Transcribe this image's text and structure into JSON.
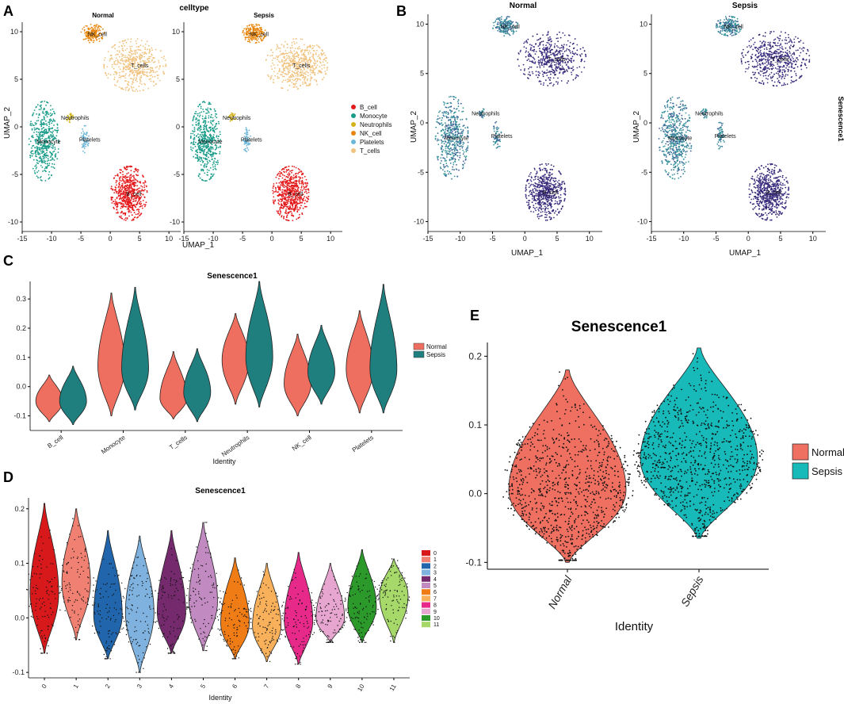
{
  "panel_letters": [
    "A",
    "B",
    "C",
    "D",
    "E"
  ],
  "chart_data": [
    {
      "panel": "A",
      "type": "scatter",
      "title": "celltype",
      "facets": [
        "Normal",
        "Sepsis"
      ],
      "xlabel": "UMAP_1",
      "ylabel": "UMAP_2",
      "xlim": [
        -15,
        12
      ],
      "ylim": [
        -11,
        11
      ],
      "x_ticks": [
        -15,
        -10,
        -5,
        0,
        5,
        10
      ],
      "y_ticks": [
        10,
        5,
        0,
        -5,
        -10
      ],
      "legend": [
        {
          "name": "B_cell",
          "color": "#e41a1c"
        },
        {
          "name": "Monocyte",
          "color": "#1a9c8a"
        },
        {
          "name": "Neutrophils",
          "color": "#d4b31a"
        },
        {
          "name": "NK_cell",
          "color": "#e8870e"
        },
        {
          "name": "Platelets",
          "color": "#6cb6d9"
        },
        {
          "name": "T_cells",
          "color": "#f0c27f"
        }
      ],
      "clusters": [
        {
          "label": "NK_cell",
          "color": "#e8870e",
          "cx": -3,
          "cy": 9.8,
          "rx": 1.8,
          "ry": 0.9,
          "n": 200
        },
        {
          "label": "T_cells",
          "color": "#f0c27f",
          "cx": 4.2,
          "cy": 6.5,
          "rx": 4.8,
          "ry": 2.5,
          "n": 520
        },
        {
          "label": "Neutrophils",
          "color": "#d4b31a",
          "cx": -6.8,
          "cy": 1.0,
          "rx": 0.6,
          "ry": 0.5,
          "n": 30
        },
        {
          "label": "Monocyte",
          "color": "#1a9c8a",
          "cx": -11.3,
          "cy": -1.5,
          "rx": 2.3,
          "ry": 3.8,
          "n": 520
        },
        {
          "label": "Platelets",
          "color": "#6cb6d9",
          "cx": -4.3,
          "cy": -1.3,
          "rx": 0.6,
          "ry": 1.3,
          "n": 60
        },
        {
          "label": "B_cell",
          "color": "#e41a1c",
          "cx": 3.2,
          "cy": -7.0,
          "rx": 2.8,
          "ry": 2.6,
          "n": 620
        }
      ]
    },
    {
      "panel": "B",
      "type": "scatter",
      "facets": [
        "Normal",
        "Sepsis"
      ],
      "xlabel": "UMAP_1",
      "ylabel": "UMAP_2",
      "color_by": "Senescence1",
      "xlim": [
        -15,
        12
      ],
      "ylim": [
        -11,
        11
      ],
      "x_ticks": [
        -15,
        -10,
        -5,
        0,
        5,
        10
      ],
      "y_ticks": [
        10,
        5,
        0,
        -5,
        -10
      ],
      "cluster_labels": [
        "NK_cell",
        "T_cells",
        "Neutrophils",
        "Monocyte",
        "Platelets",
        "B_cell"
      ]
    },
    {
      "panel": "C",
      "type": "violin",
      "title": "Senescence1",
      "xlabel": "Identity",
      "ylim": [
        -0.15,
        0.36
      ],
      "y_ticks": [
        -0.1,
        0.0,
        0.1,
        0.2,
        0.3
      ],
      "y_tick_labels": [
        "-0.1",
        "0.0",
        "0.1",
        "0.2",
        "0.3"
      ],
      "categories": [
        "B_cell",
        "Monocyte",
        "T_cells",
        "Neutrophils",
        "NK_cell",
        "Platelets"
      ],
      "legend": [
        {
          "name": "Normal",
          "color": "#ee6f5f"
        },
        {
          "name": "Sepsis",
          "color": "#1f7f7f"
        }
      ],
      "series": [
        {
          "name": "Normal",
          "min": [
            -0.12,
            -0.1,
            -0.11,
            -0.06,
            -0.1,
            -0.09
          ],
          "max": [
            0.04,
            0.32,
            0.12,
            0.25,
            0.18,
            0.26
          ],
          "mode": [
            -0.05,
            0.07,
            -0.04,
            0.09,
            0.01,
            0.06
          ]
        },
        {
          "name": "Sepsis",
          "min": [
            -0.13,
            -0.08,
            -0.12,
            -0.07,
            -0.06,
            -0.09
          ],
          "max": [
            0.07,
            0.34,
            0.13,
            0.36,
            0.21,
            0.35
          ],
          "mode": [
            -0.05,
            0.06,
            -0.02,
            0.1,
            0.05,
            0.06
          ]
        }
      ]
    },
    {
      "panel": "D",
      "type": "violin",
      "title": "Senescence1",
      "xlabel": "Identity",
      "ylim": [
        -0.11,
        0.22
      ],
      "y_ticks": [
        -0.1,
        0.0,
        0.1,
        0.2
      ],
      "y_tick_labels": [
        "-0.1",
        "0.0",
        "0.1",
        "0.2"
      ],
      "categories": [
        "0",
        "1",
        "2",
        "3",
        "4",
        "5",
        "6",
        "7",
        "8",
        "9",
        "10",
        "11"
      ],
      "colors": [
        "#d7191c",
        "#f08072",
        "#2166ac",
        "#7fb2de",
        "#762a6e",
        "#c18ac0",
        "#f07c16",
        "#f8b15a",
        "#e7298a",
        "#e7a6cf",
        "#2b9a2b",
        "#a6d96a"
      ],
      "min": [
        -0.065,
        -0.04,
        -0.075,
        -0.1,
        -0.065,
        -0.06,
        -0.075,
        -0.08,
        -0.085,
        -0.045,
        -0.045,
        -0.045
      ],
      "max": [
        0.21,
        0.2,
        0.16,
        0.15,
        0.16,
        0.175,
        0.11,
        0.1,
        0.12,
        0.1,
        0.125,
        0.108
      ],
      "mode": [
        0.045,
        0.065,
        0.005,
        0.01,
        0.01,
        0.03,
        -0.01,
        -0.015,
        -0.005,
        0.0,
        0.02,
        0.04
      ]
    },
    {
      "panel": "E",
      "type": "violin",
      "title": "Senescence1",
      "xlabel": "Identity",
      "ylim": [
        -0.11,
        0.22
      ],
      "y_ticks": [
        -0.1,
        0.0,
        0.1,
        0.2
      ],
      "y_tick_labels": [
        "-0.1",
        "0.0",
        "0.1",
        "0.2"
      ],
      "categories": [
        "Normal",
        "Sepsis"
      ],
      "legend": [
        {
          "name": "Normal",
          "color": "#ef6f60"
        },
        {
          "name": "Sepsis",
          "color": "#17b9b9"
        }
      ],
      "min": [
        -0.1,
        -0.065
      ],
      "max": [
        0.18,
        0.212
      ],
      "mode": [
        0.005,
        0.05
      ]
    }
  ]
}
